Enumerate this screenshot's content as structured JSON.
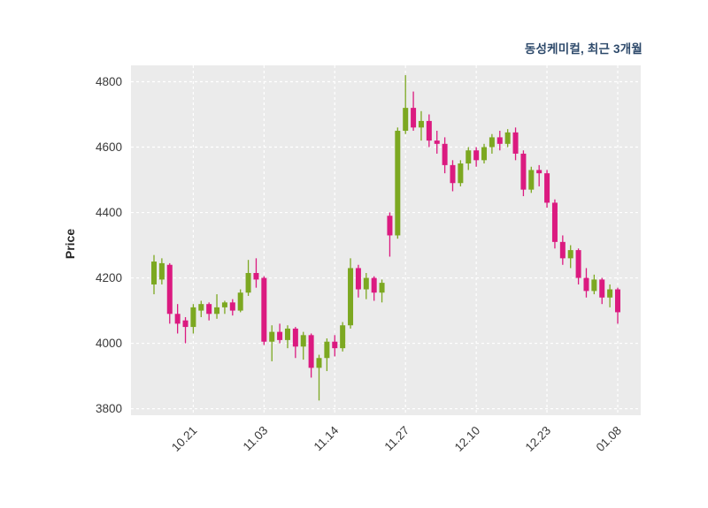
{
  "chart_data": {
    "type": "candlestick",
    "title": "동성케미컬, 최근 3개월",
    "ylabel": "Price",
    "y_ticks": [
      3800,
      4000,
      4200,
      4400,
      4600,
      4800
    ],
    "ylim": [
      3780,
      4850
    ],
    "x_tick_labels": [
      "10.21",
      "11.03",
      "11.14",
      "11.27",
      "12.10",
      "12.23",
      "01.08"
    ],
    "x_tick_indices": [
      5,
      14,
      23,
      32,
      41,
      50,
      59
    ],
    "grid": true,
    "legend": "none",
    "colors": {
      "up": "#7CA821",
      "down": "#DB1A80",
      "plot_bg": "#EBEBEB",
      "grid": "#FFFFFF",
      "title": "#2E4A6B",
      "tick": "#3A3A3A"
    },
    "candles_ohlc": [
      [
        4180,
        4270,
        4150,
        4250
      ],
      [
        4195,
        4260,
        4180,
        4245
      ],
      [
        4240,
        4245,
        4060,
        4090
      ],
      [
        4090,
        4120,
        4030,
        4060
      ],
      [
        4070,
        4080,
        4000,
        4050
      ],
      [
        4050,
        4120,
        4030,
        4110
      ],
      [
        4100,
        4130,
        4080,
        4120
      ],
      [
        4120,
        4125,
        4070,
        4090
      ],
      [
        4090,
        4150,
        4075,
        4110
      ],
      [
        4110,
        4130,
        4090,
        4125
      ],
      [
        4125,
        4135,
        4085,
        4100
      ],
      [
        4100,
        4165,
        4095,
        4155
      ],
      [
        4155,
        4255,
        4145,
        4215
      ],
      [
        4215,
        4260,
        4170,
        4195
      ],
      [
        4200,
        4205,
        3995,
        4005
      ],
      [
        4005,
        4055,
        3945,
        4035
      ],
      [
        4035,
        4060,
        4000,
        4010
      ],
      [
        4010,
        4055,
        3985,
        4045
      ],
      [
        4045,
        4050,
        3955,
        3990
      ],
      [
        3990,
        4035,
        3950,
        4025
      ],
      [
        4025,
        4030,
        3895,
        3925
      ],
      [
        3925,
        3965,
        3825,
        3955
      ],
      [
        3955,
        4015,
        3915,
        4005
      ],
      [
        4005,
        4025,
        3960,
        3985
      ],
      [
        3985,
        4065,
        3975,
        4055
      ],
      [
        4055,
        4260,
        4045,
        4230
      ],
      [
        4230,
        4240,
        4140,
        4165
      ],
      [
        4165,
        4215,
        4135,
        4200
      ],
      [
        4200,
        4205,
        4130,
        4155
      ],
      [
        4155,
        4195,
        4125,
        4185
      ],
      [
        4390,
        4400,
        4265,
        4330
      ],
      [
        4330,
        4660,
        4320,
        4650
      ],
      [
        4650,
        4820,
        4640,
        4720
      ],
      [
        4720,
        4770,
        4650,
        4660
      ],
      [
        4660,
        4710,
        4620,
        4680
      ],
      [
        4680,
        4700,
        4600,
        4620
      ],
      [
        4620,
        4650,
        4580,
        4610
      ],
      [
        4610,
        4630,
        4520,
        4545
      ],
      [
        4545,
        4560,
        4465,
        4490
      ],
      [
        4490,
        4560,
        4480,
        4550
      ],
      [
        4550,
        4600,
        4530,
        4590
      ],
      [
        4590,
        4600,
        4540,
        4560
      ],
      [
        4560,
        4610,
        4550,
        4600
      ],
      [
        4600,
        4640,
        4580,
        4630
      ],
      [
        4630,
        4650,
        4590,
        4610
      ],
      [
        4610,
        4655,
        4600,
        4645
      ],
      [
        4645,
        4660,
        4560,
        4580
      ],
      [
        4580,
        4590,
        4450,
        4470
      ],
      [
        4470,
        4540,
        4460,
        4530
      ],
      [
        4530,
        4545,
        4480,
        4520
      ],
      [
        4520,
        4530,
        4415,
        4430
      ],
      [
        4430,
        4440,
        4290,
        4310
      ],
      [
        4310,
        4330,
        4240,
        4260
      ],
      [
        4260,
        4300,
        4230,
        4285
      ],
      [
        4285,
        4290,
        4180,
        4200
      ],
      [
        4200,
        4230,
        4140,
        4160
      ],
      [
        4160,
        4210,
        4150,
        4195
      ],
      [
        4195,
        4200,
        4120,
        4140
      ],
      [
        4140,
        4180,
        4110,
        4165
      ],
      [
        4165,
        4170,
        4060,
        4095
      ]
    ]
  }
}
